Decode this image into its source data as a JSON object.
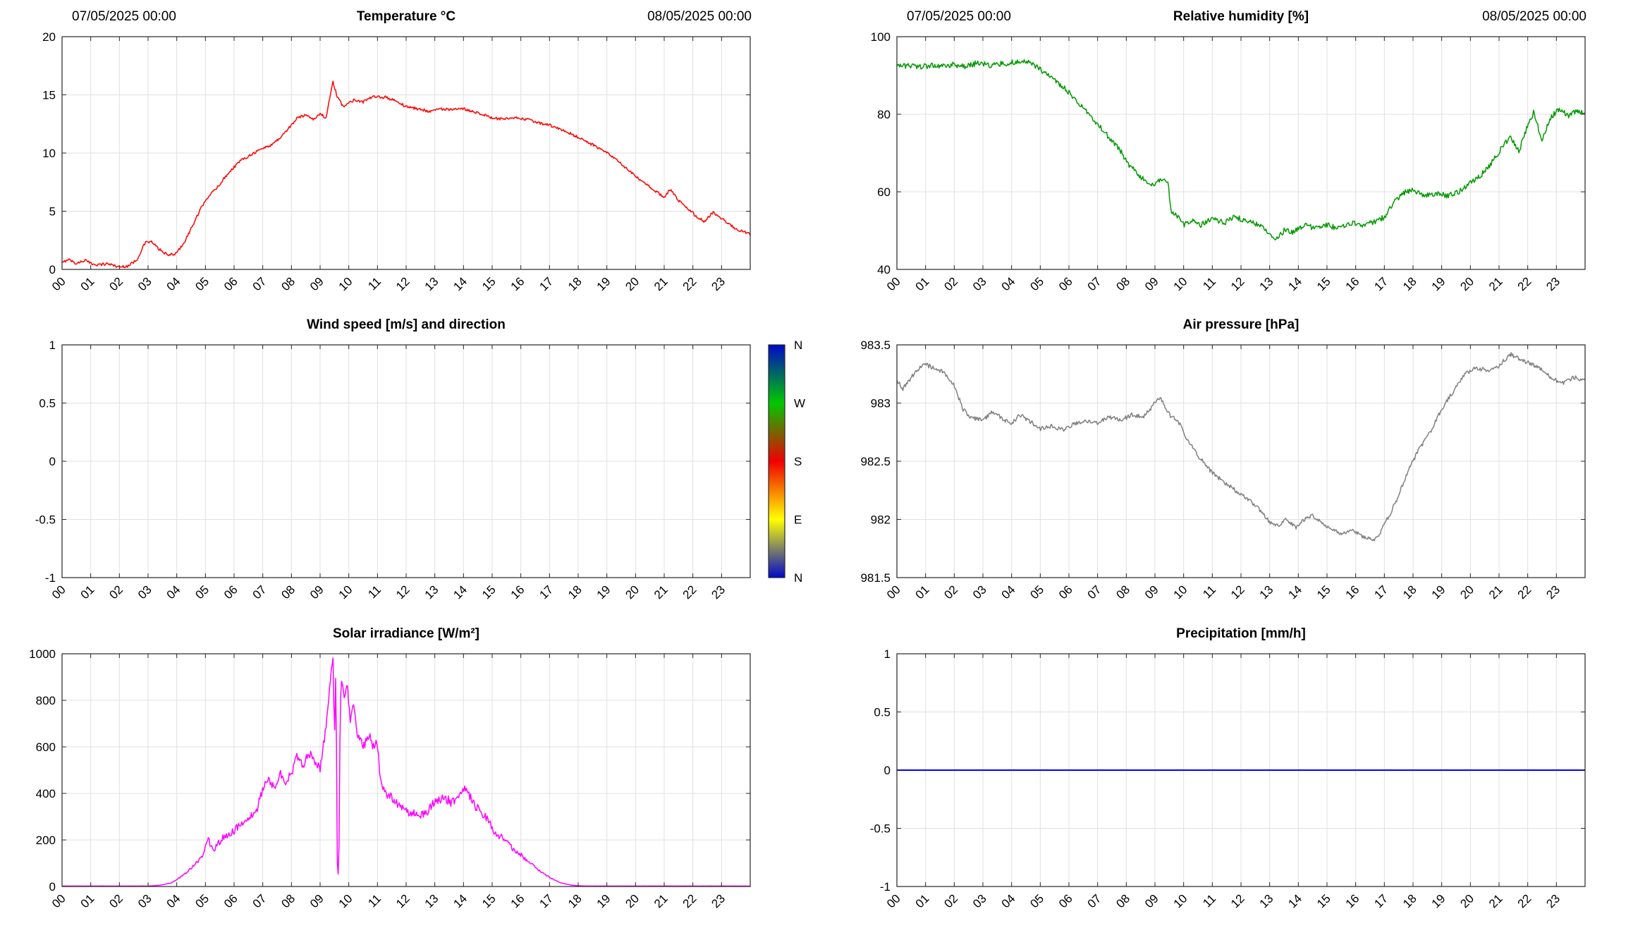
{
  "figure": {
    "background": "#FFFFFF",
    "grid_color": "#E0E0E0",
    "axis_color": "#262626",
    "text_color": "#000000"
  },
  "axes": {
    "hour_labels": [
      "00",
      "01",
      "02",
      "03",
      "04",
      "05",
      "06",
      "07",
      "08",
      "09",
      "10",
      "11",
      "12",
      "13",
      "14",
      "15",
      "16",
      "17",
      "18",
      "19",
      "20",
      "21",
      "22",
      "23"
    ]
  },
  "chart_data": [
    {
      "id": "temperature",
      "type": "line",
      "title": "Temperature °C",
      "date_left": "07/05/2025 00:00",
      "date_right": "08/05/2025 00:00",
      "xlim": [
        0,
        24
      ],
      "ylim": [
        0,
        20
      ],
      "yticks": [
        0,
        5,
        10,
        15,
        20
      ],
      "ytick_labels": [
        "0",
        "5",
        "10",
        "15",
        "20"
      ],
      "grid": true,
      "series": [
        {
          "name": "temperature",
          "color": "#FF0000",
          "noise": 0.12,
          "x": [
            0,
            0.2,
            0.5,
            0.8,
            1.0,
            1.3,
            1.6,
            2.0,
            2.3,
            2.6,
            2.9,
            3.1,
            3.4,
            3.7,
            4.0,
            4.3,
            4.6,
            5.0,
            5.4,
            5.8,
            6.2,
            6.6,
            7.0,
            7.3,
            7.6,
            8.0,
            8.2,
            8.5,
            8.8,
            9.0,
            9.2,
            9.45,
            9.6,
            9.8,
            10.0,
            10.2,
            10.5,
            10.8,
            11.0,
            11.3,
            11.6,
            12.0,
            12.4,
            12.8,
            13.2,
            13.6,
            14.0,
            14.3,
            14.6,
            15.0,
            15.4,
            15.8,
            16.2,
            16.6,
            17.0,
            17.4,
            17.8,
            18.2,
            18.6,
            19.0,
            19.4,
            19.8,
            20.2,
            20.6,
            21.0,
            21.2,
            21.5,
            21.8,
            22.1,
            22.4,
            22.7,
            23.0,
            23.3,
            23.6,
            24.0
          ],
          "y": [
            0.5,
            0.9,
            0.5,
            0.8,
            0.5,
            0.4,
            0.5,
            0.2,
            0.3,
            0.8,
            2.3,
            2.4,
            1.7,
            1.2,
            1.4,
            2.5,
            4.0,
            6.0,
            7.0,
            8.3,
            9.3,
            9.9,
            10.4,
            10.7,
            11.3,
            12.4,
            13.0,
            13.3,
            12.9,
            13.4,
            13.0,
            16.1,
            14.8,
            14.0,
            14.3,
            14.6,
            14.4,
            14.8,
            14.8,
            14.8,
            14.5,
            14.0,
            13.8,
            13.6,
            13.8,
            13.7,
            13.8,
            13.6,
            13.4,
            13.0,
            12.9,
            13.0,
            12.9,
            12.6,
            12.4,
            12.0,
            11.6,
            11.1,
            10.6,
            10.0,
            9.3,
            8.4,
            7.6,
            6.9,
            6.2,
            6.9,
            5.9,
            5.3,
            4.6,
            4.1,
            4.9,
            4.4,
            3.8,
            3.4,
            3.0
          ]
        }
      ]
    },
    {
      "id": "humidity",
      "type": "line",
      "title": "Relative humidity [%]",
      "date_left": "07/05/2025 00:00",
      "date_right": "08/05/2025 00:00",
      "xlim": [
        0,
        24
      ],
      "ylim": [
        40,
        100
      ],
      "yticks": [
        40,
        60,
        80,
        100
      ],
      "ytick_labels": [
        "40",
        "60",
        "80",
        "100"
      ],
      "grid": true,
      "series": [
        {
          "name": "relative-humidity",
          "color": "#009900",
          "noise": 0.7,
          "x": [
            0,
            0.4,
            0.8,
            1.2,
            1.6,
            2.0,
            2.4,
            2.8,
            3.2,
            3.6,
            4.0,
            4.4,
            4.7,
            5.0,
            5.4,
            5.8,
            6.2,
            6.6,
            7.0,
            7.4,
            7.8,
            8.1,
            8.4,
            8.7,
            9.0,
            9.2,
            9.45,
            9.55,
            9.8,
            10.0,
            10.3,
            10.6,
            11.0,
            11.4,
            11.8,
            12.2,
            12.6,
            13.0,
            13.2,
            13.5,
            13.8,
            14.2,
            14.6,
            15.0,
            15.4,
            15.8,
            16.2,
            16.6,
            17.0,
            17.3,
            17.6,
            18.0,
            18.4,
            18.8,
            19.2,
            19.6,
            20.0,
            20.4,
            20.8,
            21.1,
            21.4,
            21.7,
            22.0,
            22.2,
            22.5,
            22.8,
            23.1,
            23.4,
            23.7,
            24.0
          ],
          "y": [
            92.2,
            92.5,
            92.2,
            92.6,
            92.3,
            92.8,
            92.2,
            93.3,
            92.6,
            93.0,
            93.3,
            93.6,
            93.2,
            91.5,
            89.5,
            87.0,
            84.0,
            81.0,
            77.5,
            74.0,
            70.5,
            67.0,
            64.5,
            62.5,
            61.5,
            63.5,
            63.0,
            55.0,
            53.5,
            51.5,
            52.5,
            51.5,
            53.0,
            52.0,
            53.5,
            52.5,
            51.5,
            49.5,
            47.5,
            50.0,
            49.5,
            51.5,
            50.5,
            51.5,
            50.5,
            52.0,
            51.5,
            52.0,
            53.5,
            57.0,
            59.5,
            60.5,
            59.0,
            59.5,
            59.0,
            60.0,
            62.5,
            64.5,
            68.0,
            71.5,
            74.0,
            70.5,
            77.0,
            80.5,
            73.5,
            79.0,
            81.5,
            79.5,
            81.0,
            80.5
          ]
        }
      ]
    },
    {
      "id": "wind",
      "type": "line",
      "title": "Wind speed [m/s] and direction",
      "xlim": [
        0,
        24
      ],
      "ylim": [
        -1,
        1
      ],
      "yticks": [
        -1,
        -0.5,
        0,
        0.5,
        1
      ],
      "ytick_labels": [
        "-1",
        "-0.5",
        "0",
        "0.5",
        "1"
      ],
      "grid": true,
      "series": [],
      "colorbar": {
        "labels": [
          "N",
          "W",
          "S",
          "E",
          "N"
        ],
        "colors": [
          "#0008C8",
          "#00C800",
          "#F00000",
          "#FFFF00",
          "#0008C8"
        ]
      }
    },
    {
      "id": "pressure",
      "type": "line",
      "title": "Air pressure [hPa]",
      "xlim": [
        0,
        24
      ],
      "ylim": [
        981.5,
        983.5
      ],
      "yticks": [
        981.5,
        982,
        982.5,
        983,
        983.5
      ],
      "ytick_labels": [
        "981.5",
        "982",
        "982.5",
        "983",
        "983.5"
      ],
      "grid": true,
      "series": [
        {
          "name": "air-pressure",
          "color": "#808080",
          "noise": 0.018,
          "x": [
            0,
            0.2,
            0.5,
            0.8,
            1.0,
            1.3,
            1.6,
            2.0,
            2.3,
            2.6,
            3.0,
            3.3,
            3.6,
            4.0,
            4.3,
            4.6,
            5.0,
            5.4,
            5.8,
            6.2,
            6.6,
            7.0,
            7.4,
            7.8,
            8.2,
            8.6,
            9.0,
            9.2,
            9.5,
            9.8,
            10.1,
            10.5,
            11.0,
            11.4,
            11.8,
            12.2,
            12.6,
            13.0,
            13.3,
            13.6,
            13.9,
            14.2,
            14.5,
            14.8,
            15.1,
            15.5,
            15.9,
            16.3,
            16.7,
            17.0,
            17.4,
            17.8,
            18.2,
            18.6,
            19.0,
            19.4,
            19.8,
            20.2,
            20.6,
            21.0,
            21.4,
            21.7,
            22.0,
            22.4,
            22.8,
            23.2,
            23.6,
            24.0
          ],
          "y": [
            983.2,
            983.12,
            983.22,
            983.3,
            983.33,
            983.3,
            983.27,
            983.15,
            982.95,
            982.87,
            982.85,
            982.92,
            982.88,
            982.82,
            982.9,
            982.85,
            982.78,
            982.8,
            982.77,
            982.82,
            982.85,
            982.83,
            982.88,
            982.85,
            982.9,
            982.88,
            983.0,
            983.05,
            982.9,
            982.85,
            982.7,
            982.55,
            982.4,
            982.32,
            982.25,
            982.18,
            982.1,
            981.98,
            981.95,
            982.0,
            981.93,
            982.0,
            982.03,
            981.97,
            981.92,
            981.88,
            981.9,
            981.85,
            981.83,
            981.95,
            982.15,
            982.4,
            982.6,
            982.75,
            982.95,
            983.1,
            983.25,
            983.3,
            983.28,
            983.32,
            983.42,
            983.38,
            983.35,
            983.3,
            983.22,
            983.17,
            983.22,
            983.2
          ]
        }
      ]
    },
    {
      "id": "solar",
      "type": "line",
      "title": "Solar irradiance [W/m²]",
      "xlim": [
        0,
        24
      ],
      "ylim": [
        0,
        1000
      ],
      "yticks": [
        0,
        200,
        400,
        600,
        800,
        1000
      ],
      "ytick_labels": [
        "0",
        "200",
        "400",
        "600",
        "800",
        "1000"
      ],
      "grid": true,
      "series": [
        {
          "name": "solar-irradiance",
          "color": "#FF00FF",
          "noise": 20,
          "noise_rel": true,
          "x": [
            0,
            3.0,
            3.4,
            3.8,
            4.2,
            4.6,
            4.9,
            5.1,
            5.3,
            5.6,
            5.9,
            6.2,
            6.5,
            6.8,
            7.0,
            7.2,
            7.4,
            7.6,
            7.8,
            8.0,
            8.2,
            8.4,
            8.6,
            8.8,
            9.0,
            9.2,
            9.35,
            9.45,
            9.5,
            9.55,
            9.6,
            9.65,
            9.7,
            9.75,
            9.85,
            9.95,
            10.05,
            10.15,
            10.3,
            10.5,
            10.7,
            10.85,
            11.0,
            11.1,
            11.3,
            11.5,
            11.7,
            12.0,
            12.3,
            12.6,
            13.0,
            13.3,
            13.6,
            13.9,
            14.1,
            14.4,
            14.7,
            15.0,
            15.4,
            15.8,
            16.2,
            16.6,
            17.0,
            17.4,
            17.8,
            18.2,
            19.0,
            20.0,
            21.0,
            22.0,
            23.0,
            24.0
          ],
          "y": [
            2,
            2,
            5,
            15,
            45,
            90,
            130,
            200,
            160,
            210,
            230,
            260,
            300,
            330,
            420,
            460,
            430,
            490,
            450,
            480,
            560,
            510,
            580,
            540,
            500,
            680,
            870,
            1000,
            600,
            950,
            100,
            20,
            750,
            900,
            820,
            870,
            700,
            780,
            650,
            600,
            650,
            600,
            620,
            450,
            400,
            380,
            350,
            320,
            310,
            305,
            360,
            385,
            360,
            395,
            420,
            350,
            310,
            250,
            200,
            155,
            115,
            70,
            40,
            15,
            5,
            2,
            2,
            2,
            2,
            2,
            2,
            2
          ]
        }
      ]
    },
    {
      "id": "precipitation",
      "type": "line",
      "title": "Precipitation [mm/h]",
      "xlim": [
        0,
        24
      ],
      "ylim": [
        -1,
        1
      ],
      "yticks": [
        -1,
        -0.5,
        0,
        0.5,
        1
      ],
      "ytick_labels": [
        "-1",
        "-0.5",
        "0",
        "0.5",
        "1"
      ],
      "grid": true,
      "series": [
        {
          "name": "precipitation",
          "color": "#0000FF",
          "noise": 0,
          "x": [
            0,
            24
          ],
          "y": [
            0,
            0
          ]
        }
      ]
    }
  ]
}
